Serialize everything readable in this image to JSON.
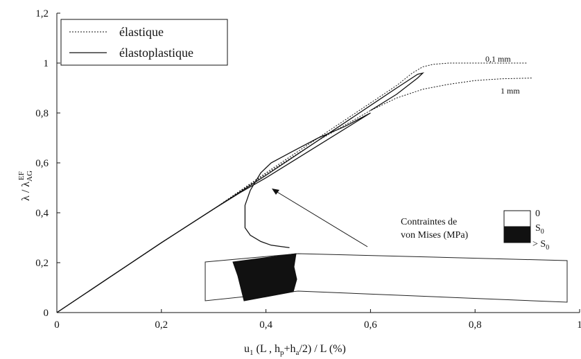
{
  "chart_data": {
    "type": "line",
    "xlabel": {
      "base": "u",
      "sub1": "1",
      "mid1": " (L , h",
      "sub2": "p",
      "mid2": "+h",
      "sub3": "a",
      "tail": "/2) / L    (%)"
    },
    "ylabel": {
      "base": "λ / λ",
      "sub": "AG",
      "sup": "EF"
    },
    "xlim": [
      0,
      1
    ],
    "ylim": [
      0,
      1.2
    ],
    "x_ticks": [
      {
        "value": 0,
        "label": "0"
      },
      {
        "value": 0.2,
        "label": "0,2"
      },
      {
        "value": 0.4,
        "label": "0,4"
      },
      {
        "value": 0.6,
        "label": "0,6"
      },
      {
        "value": 0.8,
        "label": "0,8"
      },
      {
        "value": 1.0,
        "label": "1"
      }
    ],
    "y_ticks": [
      {
        "value": 0,
        "label": "0"
      },
      {
        "value": 0.2,
        "label": "0,2"
      },
      {
        "value": 0.4,
        "label": "0,4"
      },
      {
        "value": 0.6,
        "label": "0,6"
      },
      {
        "value": 0.8,
        "label": "0,8"
      },
      {
        "value": 1.0,
        "label": "1"
      },
      {
        "value": 1.2,
        "label": "1,2"
      }
    ],
    "grid": false,
    "legend_position": "top-left",
    "series": [
      {
        "name": "élastique",
        "style": "dashed",
        "label": "0,1 mm",
        "points": [
          [
            0,
            0
          ],
          [
            0.1,
            0.14
          ],
          [
            0.2,
            0.28
          ],
          [
            0.3,
            0.415
          ],
          [
            0.4,
            0.56
          ],
          [
            0.5,
            0.7
          ],
          [
            0.6,
            0.84
          ],
          [
            0.65,
            0.91
          ],
          [
            0.68,
            0.96
          ],
          [
            0.7,
            0.985
          ],
          [
            0.72,
            0.995
          ],
          [
            0.75,
            1.0
          ],
          [
            0.8,
            1.0
          ],
          [
            0.85,
            1.0
          ],
          [
            0.9,
            1.0
          ]
        ]
      },
      {
        "name": "élastique",
        "style": "dashed",
        "label": "1 mm",
        "points": [
          [
            0,
            0
          ],
          [
            0.1,
            0.14
          ],
          [
            0.2,
            0.28
          ],
          [
            0.3,
            0.415
          ],
          [
            0.4,
            0.555
          ],
          [
            0.5,
            0.69
          ],
          [
            0.6,
            0.81
          ],
          [
            0.65,
            0.86
          ],
          [
            0.7,
            0.895
          ],
          [
            0.75,
            0.915
          ],
          [
            0.8,
            0.93
          ],
          [
            0.85,
            0.937
          ],
          [
            0.91,
            0.94
          ]
        ]
      },
      {
        "name": "élastoplastique",
        "style": "solid",
        "label": "0,1 mm",
        "points": [
          [
            0,
            0
          ],
          [
            0.1,
            0.14
          ],
          [
            0.2,
            0.28
          ],
          [
            0.3,
            0.415
          ],
          [
            0.4,
            0.55
          ],
          [
            0.5,
            0.69
          ],
          [
            0.6,
            0.83
          ],
          [
            0.65,
            0.9
          ],
          [
            0.69,
            0.955
          ],
          [
            0.7,
            0.96
          ],
          [
            0.69,
            0.94
          ],
          [
            0.65,
            0.875
          ],
          [
            0.6,
            0.81
          ]
        ]
      },
      {
        "name": "élastoplastique",
        "style": "solid",
        "label": "1 mm",
        "points": [
          [
            0,
            0
          ],
          [
            0.1,
            0.14
          ],
          [
            0.2,
            0.28
          ],
          [
            0.3,
            0.415
          ],
          [
            0.35,
            0.48
          ],
          [
            0.4,
            0.54
          ],
          [
            0.5,
            0.67
          ],
          [
            0.6,
            0.8
          ],
          [
            0.55,
            0.745
          ],
          [
            0.5,
            0.7
          ],
          [
            0.45,
            0.645
          ],
          [
            0.41,
            0.6
          ],
          [
            0.39,
            0.56
          ],
          [
            0.37,
            0.49
          ],
          [
            0.36,
            0.43
          ],
          [
            0.36,
            0.36
          ],
          [
            0.36,
            0.34
          ],
          [
            0.37,
            0.31
          ],
          [
            0.39,
            0.285
          ],
          [
            0.41,
            0.27
          ],
          [
            0.445,
            0.26
          ]
        ]
      }
    ],
    "annotations": [
      {
        "text": "0,1 mm",
        "x": 0.82,
        "y": 1.01
      },
      {
        "text": "1 mm",
        "x": 0.83,
        "y": 0.895
      }
    ],
    "inset": {
      "title_line1": "Contraintes de",
      "title_line2": "von Mises (MPa)",
      "scale_top": "0",
      "scale_mid_base": "S",
      "scale_mid_sub": "0",
      "scale_bottom_base": "> S",
      "scale_bottom_sub": "0"
    }
  },
  "legend": [
    {
      "label": "élastique",
      "style": "dashed"
    },
    {
      "label": "élastoplastique",
      "style": "solid"
    }
  ]
}
